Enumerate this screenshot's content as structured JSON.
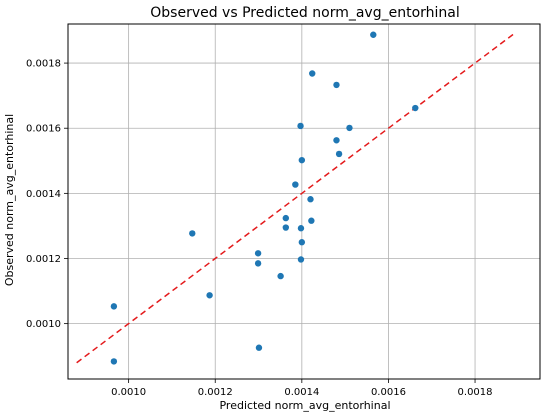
{
  "chart_data": {
    "type": "scatter",
    "title": "Observed vs Predicted norm_avg_entorhinal",
    "xlabel": "Predicted norm_avg_entorhinal",
    "ylabel": "Observed norm_avg_entorhinal",
    "xlim": [
      0.00086,
      0.00195
    ],
    "ylim": [
      0.00083,
      0.00192
    ],
    "xticks": [
      0.001,
      0.0012,
      0.0014,
      0.0016,
      0.0018
    ],
    "xtick_labels": [
      "0.0010",
      "0.0012",
      "0.0014",
      "0.0016",
      "0.0018"
    ],
    "yticks": [
      0.001,
      0.0012,
      0.0014,
      0.0016,
      0.0018
    ],
    "ytick_labels": [
      "0.0010",
      "0.0012",
      "0.0014",
      "0.0016",
      "0.0018"
    ],
    "grid": true,
    "point_color": "#1f77b4",
    "reference_line": {
      "style": "dashed",
      "color": "#e41a1c",
      "from": [
        0.00088,
        0.00088
      ],
      "to": [
        0.00189,
        0.00189
      ]
    },
    "points": [
      {
        "x": 0.000966,
        "y": 0.001053
      },
      {
        "x": 0.000966,
        "y": 0.000884
      },
      {
        "x": 0.001147,
        "y": 0.001277
      },
      {
        "x": 0.001187,
        "y": 0.001087
      },
      {
        "x": 0.001299,
        "y": 0.001216
      },
      {
        "x": 0.001299,
        "y": 0.001185
      },
      {
        "x": 0.001301,
        "y": 0.000926
      },
      {
        "x": 0.001351,
        "y": 0.001146
      },
      {
        "x": 0.001363,
        "y": 0.001324
      },
      {
        "x": 0.001363,
        "y": 0.001295
      },
      {
        "x": 0.001385,
        "y": 0.001427
      },
      {
        "x": 0.001397,
        "y": 0.001607
      },
      {
        "x": 0.001398,
        "y": 0.001293
      },
      {
        "x": 0.001398,
        "y": 0.001197
      },
      {
        "x": 0.0014,
        "y": 0.001502
      },
      {
        "x": 0.0014,
        "y": 0.00125
      },
      {
        "x": 0.00142,
        "y": 0.001382
      },
      {
        "x": 0.001422,
        "y": 0.001316
      },
      {
        "x": 0.001424,
        "y": 0.001768
      },
      {
        "x": 0.00148,
        "y": 0.001733
      },
      {
        "x": 0.00148,
        "y": 0.001563
      },
      {
        "x": 0.001486,
        "y": 0.001521
      },
      {
        "x": 0.00151,
        "y": 0.001601
      },
      {
        "x": 0.001565,
        "y": 0.001887
      },
      {
        "x": 0.001662,
        "y": 0.001662
      }
    ]
  }
}
